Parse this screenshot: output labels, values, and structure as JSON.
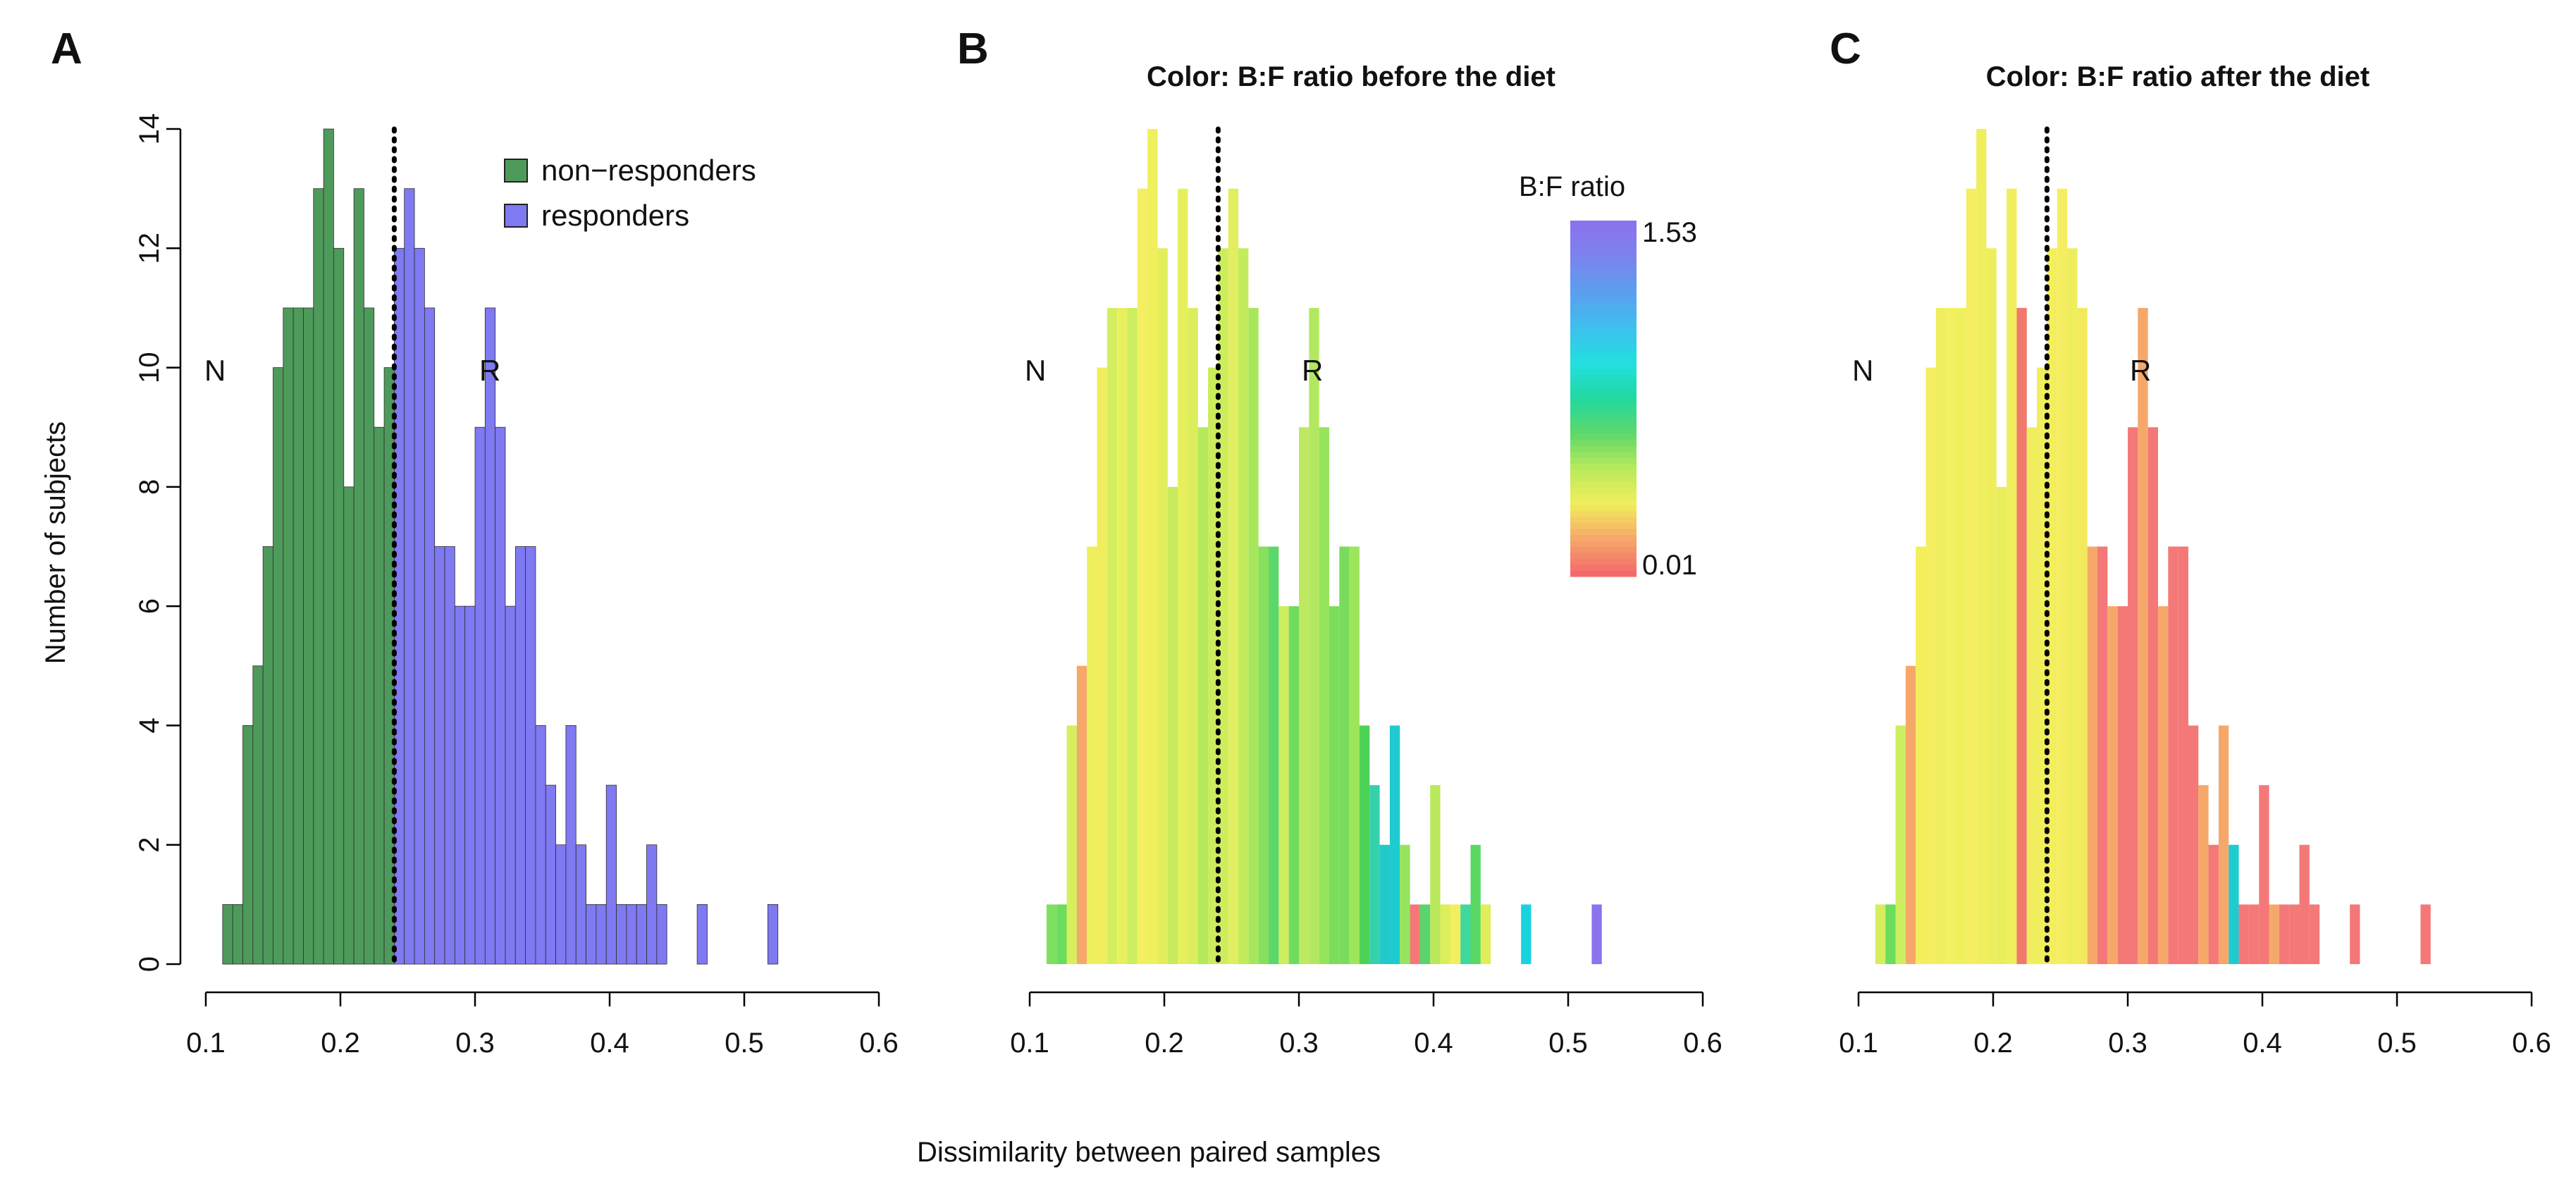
{
  "figure": {
    "shared_xlabel": "Dissimilarity between paired samples",
    "panel_letters": [
      "A",
      "B",
      "C"
    ]
  },
  "chart_data": [
    {
      "type": "bar",
      "subtype": "histogram",
      "panel": "A",
      "title": "",
      "xlabel": "",
      "ylabel": "Number of subjects",
      "xlim": [
        0.1,
        0.6
      ],
      "ylim": [
        0,
        14
      ],
      "x_ticks": [
        0.1,
        0.2,
        0.3,
        0.4,
        0.5,
        0.6
      ],
      "x_tick_labels": [
        "0.1",
        "0.2",
        "0.3",
        "0.4",
        "0.5",
        "0.6"
      ],
      "y_ticks": [
        0,
        2,
        4,
        6,
        8,
        10,
        12,
        14
      ],
      "y_tick_labels": [
        "0",
        "2",
        "4",
        "6",
        "8",
        "10",
        "12",
        "14"
      ],
      "bin_width": 0.0075,
      "bin_start": 0.1125,
      "counts": [
        1,
        1,
        4,
        5,
        7,
        10,
        11,
        11,
        11,
        13,
        14,
        12,
        8,
        13,
        11,
        9,
        10,
        12,
        13,
        12,
        11,
        7,
        7,
        6,
        6,
        9,
        11,
        9,
        6,
        7,
        7,
        4,
        3,
        2,
        4,
        2,
        1,
        1,
        3,
        1,
        1,
        1,
        2,
        1,
        0,
        0,
        0,
        1,
        0,
        0,
        0,
        0,
        0,
        0,
        1
      ],
      "series": [
        {
          "name": "non-responders",
          "color": "#4e9a5b",
          "range": [
            0.1125,
            0.24
          ]
        },
        {
          "name": "responders",
          "color": "#7f79f2",
          "range": [
            0.24,
            0.5325
          ]
        }
      ],
      "threshold": 0.24,
      "region_labels": [
        "N",
        "R"
      ],
      "legend": {
        "position": "top-right",
        "entries": [
          "non−responders",
          "responders"
        ]
      }
    },
    {
      "type": "bar",
      "subtype": "histogram",
      "panel": "B",
      "title": "Color: B:F ratio before the diet",
      "xlabel": "",
      "ylabel": "",
      "xlim": [
        0.1,
        0.6
      ],
      "ylim": [
        0,
        14
      ],
      "x_ticks": [
        0.1,
        0.2,
        0.3,
        0.4,
        0.5,
        0.6
      ],
      "x_tick_labels": [
        "0.1",
        "0.2",
        "0.3",
        "0.4",
        "0.5",
        "0.6"
      ],
      "bin_width": 0.0075,
      "bin_start": 0.1125,
      "counts": [
        1,
        1,
        4,
        5,
        7,
        10,
        11,
        11,
        11,
        13,
        14,
        12,
        8,
        13,
        11,
        9,
        10,
        12,
        13,
        12,
        11,
        7,
        7,
        6,
        6,
        9,
        11,
        9,
        6,
        7,
        7,
        4,
        3,
        2,
        4,
        2,
        1,
        1,
        3,
        1,
        1,
        1,
        2,
        1,
        0,
        0,
        0,
        1,
        0,
        0,
        0,
        0,
        0,
        0,
        1
      ],
      "bar_colors": [
        "#7ee060",
        "#6cdc5c",
        "#d7ee5e",
        "#f6a86a",
        "#edf05c",
        "#f0ee5e",
        "#d4ee60",
        "#e8f060",
        "#cdee60",
        "#f4ee62",
        "#eff05c",
        "#e2ee5c",
        "#c8ea5c",
        "#e6f05c",
        "#dcee5c",
        "#b6e85c",
        "#cbec5c",
        "#cdee5c",
        "#e0ee60",
        "#c2ec5c",
        "#a8e65c",
        "#86e05c",
        "#5cd86a",
        "#cdee60",
        "#6edc60",
        "#bde860",
        "#b2e860",
        "#94e45c",
        "#7cdc5c",
        "#7adc5c",
        "#9de65c",
        "#4cd254",
        "#36d1ac",
        "#23c8c8",
        "#1ecbd0",
        "#96e45c",
        "#f47878",
        "#5ad46c",
        "#bae85c",
        "#dcee5c",
        "#f2ee5c",
        "#40d89c",
        "#5ad864",
        "#e0ee5c",
        "#ffffff",
        "#ffffff",
        "#ffffff",
        "#19d2e0",
        "#ffffff",
        "#ffffff",
        "#ffffff",
        "#ffffff",
        "#ffffff",
        "#ffffff",
        "#8c72ee"
      ],
      "threshold": 0.24,
      "region_labels": [
        "N",
        "R"
      ],
      "colorbar": {
        "title": "B:F ratio",
        "max_label": "1.53",
        "min_label": "0.01",
        "colors_low_to_high": [
          "#f46a6a",
          "#f6a86a",
          "#f0ee5c",
          "#b8ea5c",
          "#5cd86a",
          "#22d8a0",
          "#22e0e0",
          "#3cc0ee",
          "#5aa0ee",
          "#7a84ee",
          "#8c72ee"
        ]
      }
    },
    {
      "type": "bar",
      "subtype": "histogram",
      "panel": "C",
      "title": "Color: B:F ratio after the diet",
      "xlabel": "",
      "ylabel": "",
      "xlim": [
        0.1,
        0.6
      ],
      "ylim": [
        0,
        14
      ],
      "x_ticks": [
        0.1,
        0.2,
        0.3,
        0.4,
        0.5,
        0.6
      ],
      "x_tick_labels": [
        "0.1",
        "0.2",
        "0.3",
        "0.4",
        "0.5",
        "0.6"
      ],
      "bin_width": 0.0075,
      "bin_start": 0.1125,
      "counts": [
        1,
        1,
        4,
        5,
        7,
        10,
        11,
        11,
        11,
        13,
        14,
        12,
        8,
        13,
        11,
        9,
        10,
        12,
        13,
        12,
        11,
        7,
        7,
        6,
        6,
        9,
        11,
        9,
        6,
        7,
        7,
        4,
        3,
        2,
        4,
        2,
        1,
        1,
        3,
        1,
        1,
        1,
        2,
        1,
        0,
        0,
        0,
        1,
        0,
        0,
        0,
        0,
        0,
        0,
        1
      ],
      "bar_colors": [
        "#d6ee5e",
        "#6cdc5c",
        "#cdee60",
        "#f6a86a",
        "#f2ee5c",
        "#f6ee62",
        "#f0ee5c",
        "#f2f060",
        "#eef05c",
        "#f6ee62",
        "#f0ee5c",
        "#eeee5c",
        "#e8ee5c",
        "#f0ee5c",
        "#f07a6c",
        "#f0ee5c",
        "#f0ee5c",
        "#f2ee5c",
        "#f6ee62",
        "#eeee5c",
        "#f2ea5c",
        "#f6a86a",
        "#f47878",
        "#f6a86a",
        "#f47878",
        "#f47878",
        "#f6a86a",
        "#f47878",
        "#f6a86a",
        "#f47878",
        "#f47878",
        "#f47878",
        "#f6a86a",
        "#f47878",
        "#f6a86a",
        "#1ecbd0",
        "#f47878",
        "#f47878",
        "#f47878",
        "#f6a86a",
        "#f47878",
        "#f47878",
        "#f47878",
        "#f47878",
        "#ffffff",
        "#ffffff",
        "#ffffff",
        "#f47878",
        "#ffffff",
        "#ffffff",
        "#ffffff",
        "#ffffff",
        "#ffffff",
        "#ffffff",
        "#f47878"
      ],
      "threshold": 0.24,
      "region_labels": [
        "N",
        "R"
      ]
    }
  ]
}
